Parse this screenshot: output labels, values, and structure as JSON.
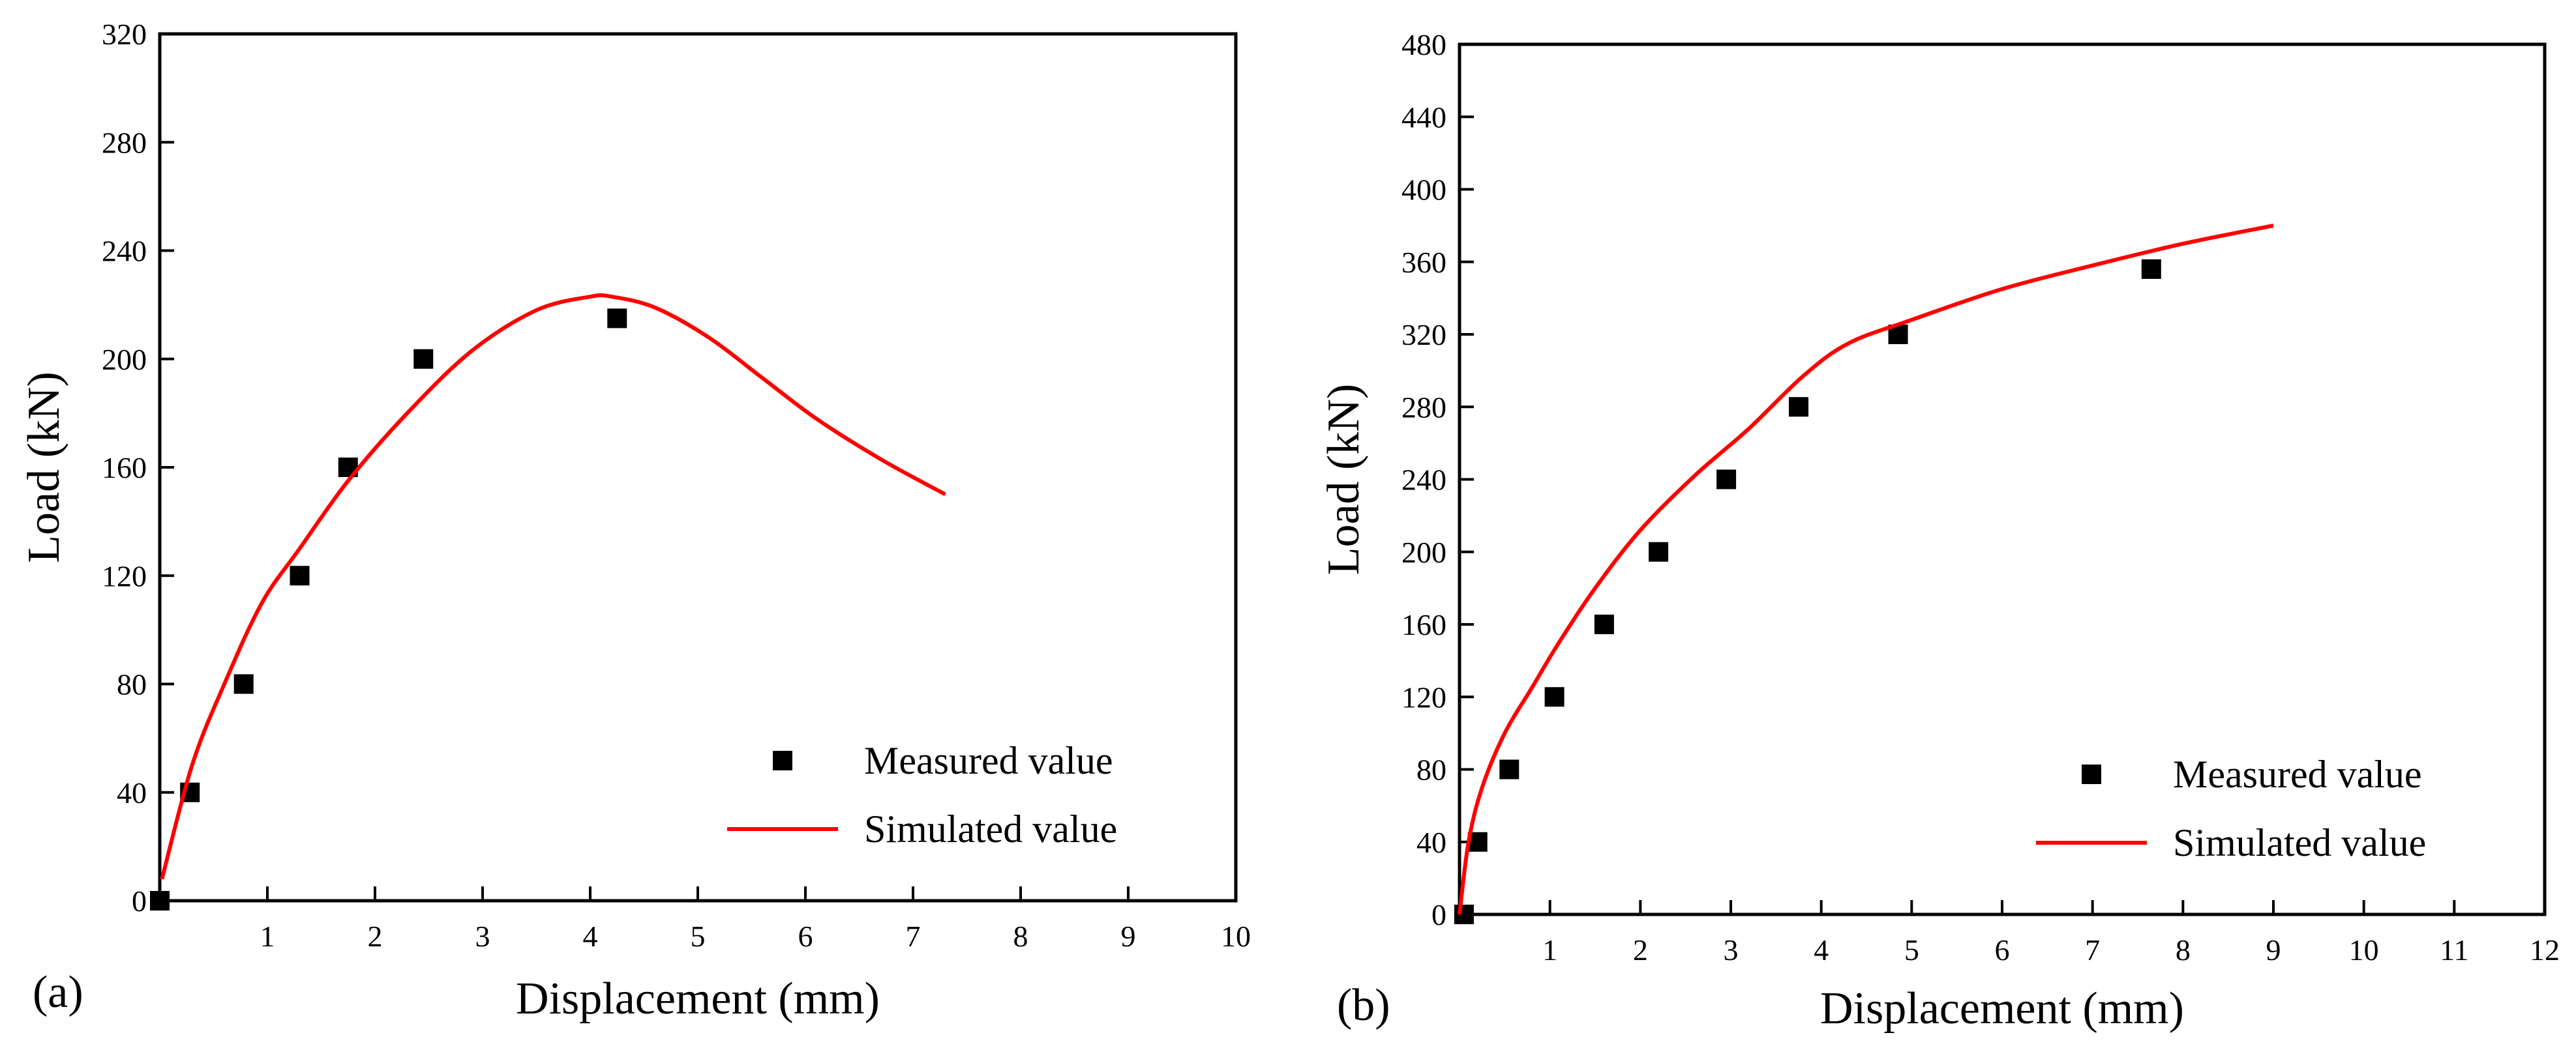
{
  "chart_data": [
    {
      "type": "scatter",
      "panel_label": "(a)",
      "xlabel": "Displacement (mm)",
      "ylabel": "Load (kN)",
      "xlim": [
        0,
        10
      ],
      "ylim": [
        0,
        320
      ],
      "xticks": [
        1,
        2,
        3,
        4,
        5,
        6,
        7,
        8,
        9,
        10
      ],
      "yticks": [
        0,
        40,
        80,
        120,
        160,
        200,
        240,
        280,
        320
      ],
      "grid": false,
      "legend_position": "bottom-right",
      "series": [
        {
          "name": "Measured value",
          "kind": "scatter",
          "marker": "square",
          "color": "#000000",
          "x": [
            0.0,
            0.28,
            0.78,
            1.3,
            1.75,
            2.45,
            4.25
          ],
          "y": [
            0,
            40,
            80,
            120,
            160,
            200,
            215
          ]
        },
        {
          "name": "Simulated value",
          "kind": "line",
          "color": "#ff0000",
          "x": [
            0.02,
            0.3,
            0.6,
            0.95,
            1.3,
            1.75,
            2.3,
            2.9,
            3.5,
            4.0,
            4.2,
            4.6,
            5.1,
            5.6,
            6.1,
            6.7,
            7.3
          ],
          "y": [
            8,
            50,
            80,
            110,
            130,
            155,
            180,
            203,
            218,
            223,
            223,
            219,
            208,
            193,
            178,
            163,
            150
          ]
        }
      ]
    },
    {
      "type": "scatter",
      "panel_label": "(b)",
      "xlabel": "Displacement (mm)",
      "ylabel": "Load (kN)",
      "xlim": [
        0,
        12
      ],
      "ylim": [
        0,
        480
      ],
      "xticks": [
        1,
        2,
        3,
        4,
        5,
        6,
        7,
        8,
        9,
        10,
        11,
        12
      ],
      "yticks": [
        0,
        40,
        80,
        120,
        160,
        200,
        240,
        280,
        320,
        360,
        400,
        440,
        480
      ],
      "grid": false,
      "legend_position": "bottom-right",
      "series": [
        {
          "name": "Measured value",
          "kind": "scatter",
          "marker": "square",
          "color": "#000000",
          "x": [
            0.05,
            0.2,
            0.55,
            1.05,
            1.6,
            2.2,
            2.95,
            3.75,
            4.85,
            7.65
          ],
          "y": [
            0,
            40,
            80,
            120,
            160,
            200,
            240,
            280,
            320,
            356
          ]
        },
        {
          "name": "Simulated value",
          "kind": "line",
          "color": "#ff0000",
          "x": [
            0.0,
            0.1,
            0.25,
            0.5,
            0.8,
            1.1,
            1.5,
            2.0,
            2.6,
            3.2,
            3.8,
            4.3,
            5.0,
            6.0,
            7.0,
            8.0,
            9.0
          ],
          "y": [
            0,
            40,
            70,
            100,
            125,
            150,
            180,
            212,
            242,
            268,
            297,
            315,
            328,
            345,
            358,
            370,
            380
          ]
        }
      ]
    }
  ]
}
